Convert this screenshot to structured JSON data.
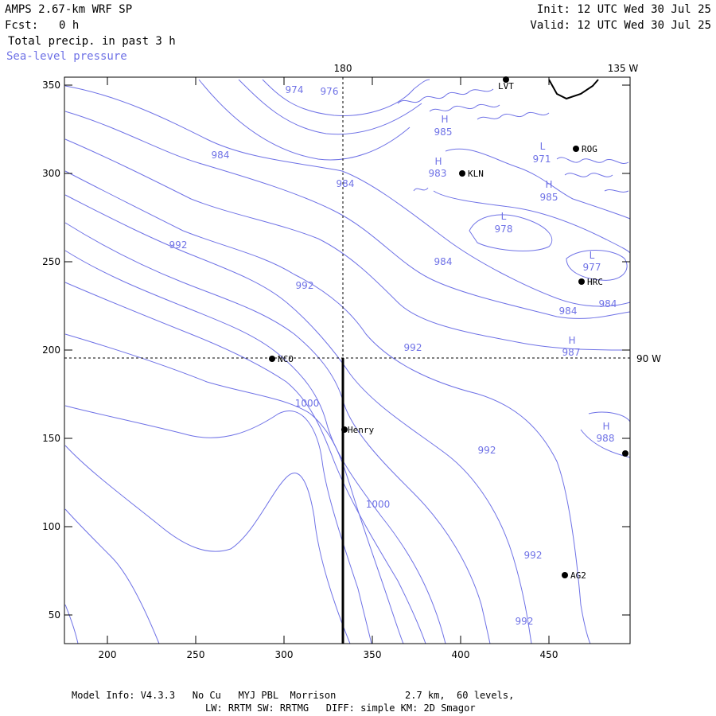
{
  "header": {
    "model": "AMPS 2.67-km WRF SP",
    "fcst_label": "Fcst:",
    "fcst_value": "0 h",
    "field": "Total precip. in past 3 h",
    "overlay": "Sea-level pressure",
    "init": "Init: 12 UTC Wed 30 Jul 25",
    "valid": "Valid: 12 UTC Wed 30 Jul 25"
  },
  "axes": {
    "x_ticks": [
      "200",
      "250",
      "300",
      "350",
      "400",
      "450"
    ],
    "y_ticks": [
      "350",
      "300",
      "250",
      "200",
      "150",
      "100",
      "50"
    ],
    "lon_labels": [
      "180",
      "135 W"
    ],
    "lat_labels": [
      "90 W"
    ]
  },
  "contour_labels": [
    "974",
    "976",
    "984",
    "984",
    "985",
    "983",
    "971",
    "985",
    "978",
    "977",
    "984",
    "984",
    "984",
    "992",
    "992",
    "992",
    "987",
    "1000",
    "988",
    "992",
    "1000",
    "992",
    "992"
  ],
  "pressure_centers": [
    "H",
    "H",
    "L",
    "H",
    "L",
    "L",
    "H",
    "H"
  ],
  "stations": [
    "LVT",
    "ROG",
    "KLN",
    "HRC",
    "NCO",
    "Henry",
    "AG2"
  ],
  "footer": {
    "line1": "Model Info: V4.3.3   No Cu   MYJ PBL  Morrison            2.7 km,  60 levels,",
    "line2": "LW: RRTM SW: RRTMG   DIFF: simple KM: 2D Smagor"
  },
  "colors": {
    "contour": "#6f72e6",
    "frame": "#000000",
    "background": "#ffffff"
  }
}
